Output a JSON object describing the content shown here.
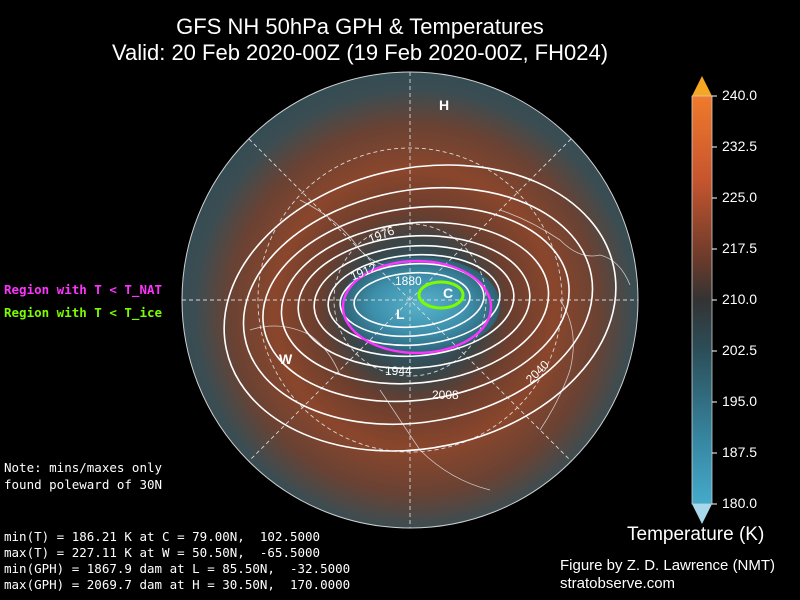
{
  "title_line1": "GFS NH 50hPa GPH & Temperatures",
  "title_line2": "Valid: 20 Feb 2020-00Z  (19 Feb 2020-00Z, FH024)",
  "legend": {
    "nat": "Region with T < T_NAT",
    "ice": "Region with T < T_ice"
  },
  "notes": {
    "line1": "Note: mins/maxes only",
    "line2": "found poleward of 30N"
  },
  "stats": [
    "min(T) = 186.21 K at C = 79.00N,  102.5000",
    "max(T) = 227.11 K at W = 50.50N,  -65.5000",
    "min(GPH) = 1867.9 dam at L = 85.50N,  -32.5000",
    "max(GPH) = 2069.7 dam at H = 30.50N,  170.0000"
  ],
  "credit": {
    "line1": "Figure by Z. D. Lawrence (NMT)",
    "line2": "stratobserve.com"
  },
  "markers": {
    "H": "H",
    "L": "L",
    "C": "C",
    "W": "W"
  },
  "colorbar": {
    "label": "Temperature (K)",
    "ticks": [
      "240.0",
      "232.5",
      "225.0",
      "217.5",
      "210.0",
      "202.5",
      "195.0",
      "187.5",
      "180.0"
    ],
    "min": 180.0,
    "max": 240.0,
    "colors": {
      "top_arrow": "#f5a623",
      "bottom_arrow": "#a9d8ec",
      "warm": "#c8562e",
      "mid": "#3a3a3a",
      "cold": "#3e9fbd"
    }
  },
  "chart_data": {
    "type": "heatmap",
    "projection": "north polar stereographic",
    "contour_labels": [
      "1976",
      "1912",
      "1880",
      "1944",
      "2008",
      "2040"
    ],
    "contour_interval_dam": 16,
    "contour_range_dam": [
      1872,
      2056
    ],
    "extrema": {
      "min_T": {
        "value_K": 186.21,
        "label": "C",
        "lat": 79.0,
        "lon": 102.5
      },
      "max_T": {
        "value_K": 227.11,
        "label": "W",
        "lat": 50.5,
        "lon": -65.5
      },
      "min_GPH": {
        "value_dam": 1867.9,
        "label": "L",
        "lat": 85.5,
        "lon": -32.5
      },
      "max_GPH": {
        "value_dam": 2069.7,
        "label": "H",
        "lat": 30.5,
        "lon": 170.0
      }
    },
    "colors": {
      "nat_contour": "#ff33ff",
      "ice_contour": "#7cfc00"
    }
  }
}
